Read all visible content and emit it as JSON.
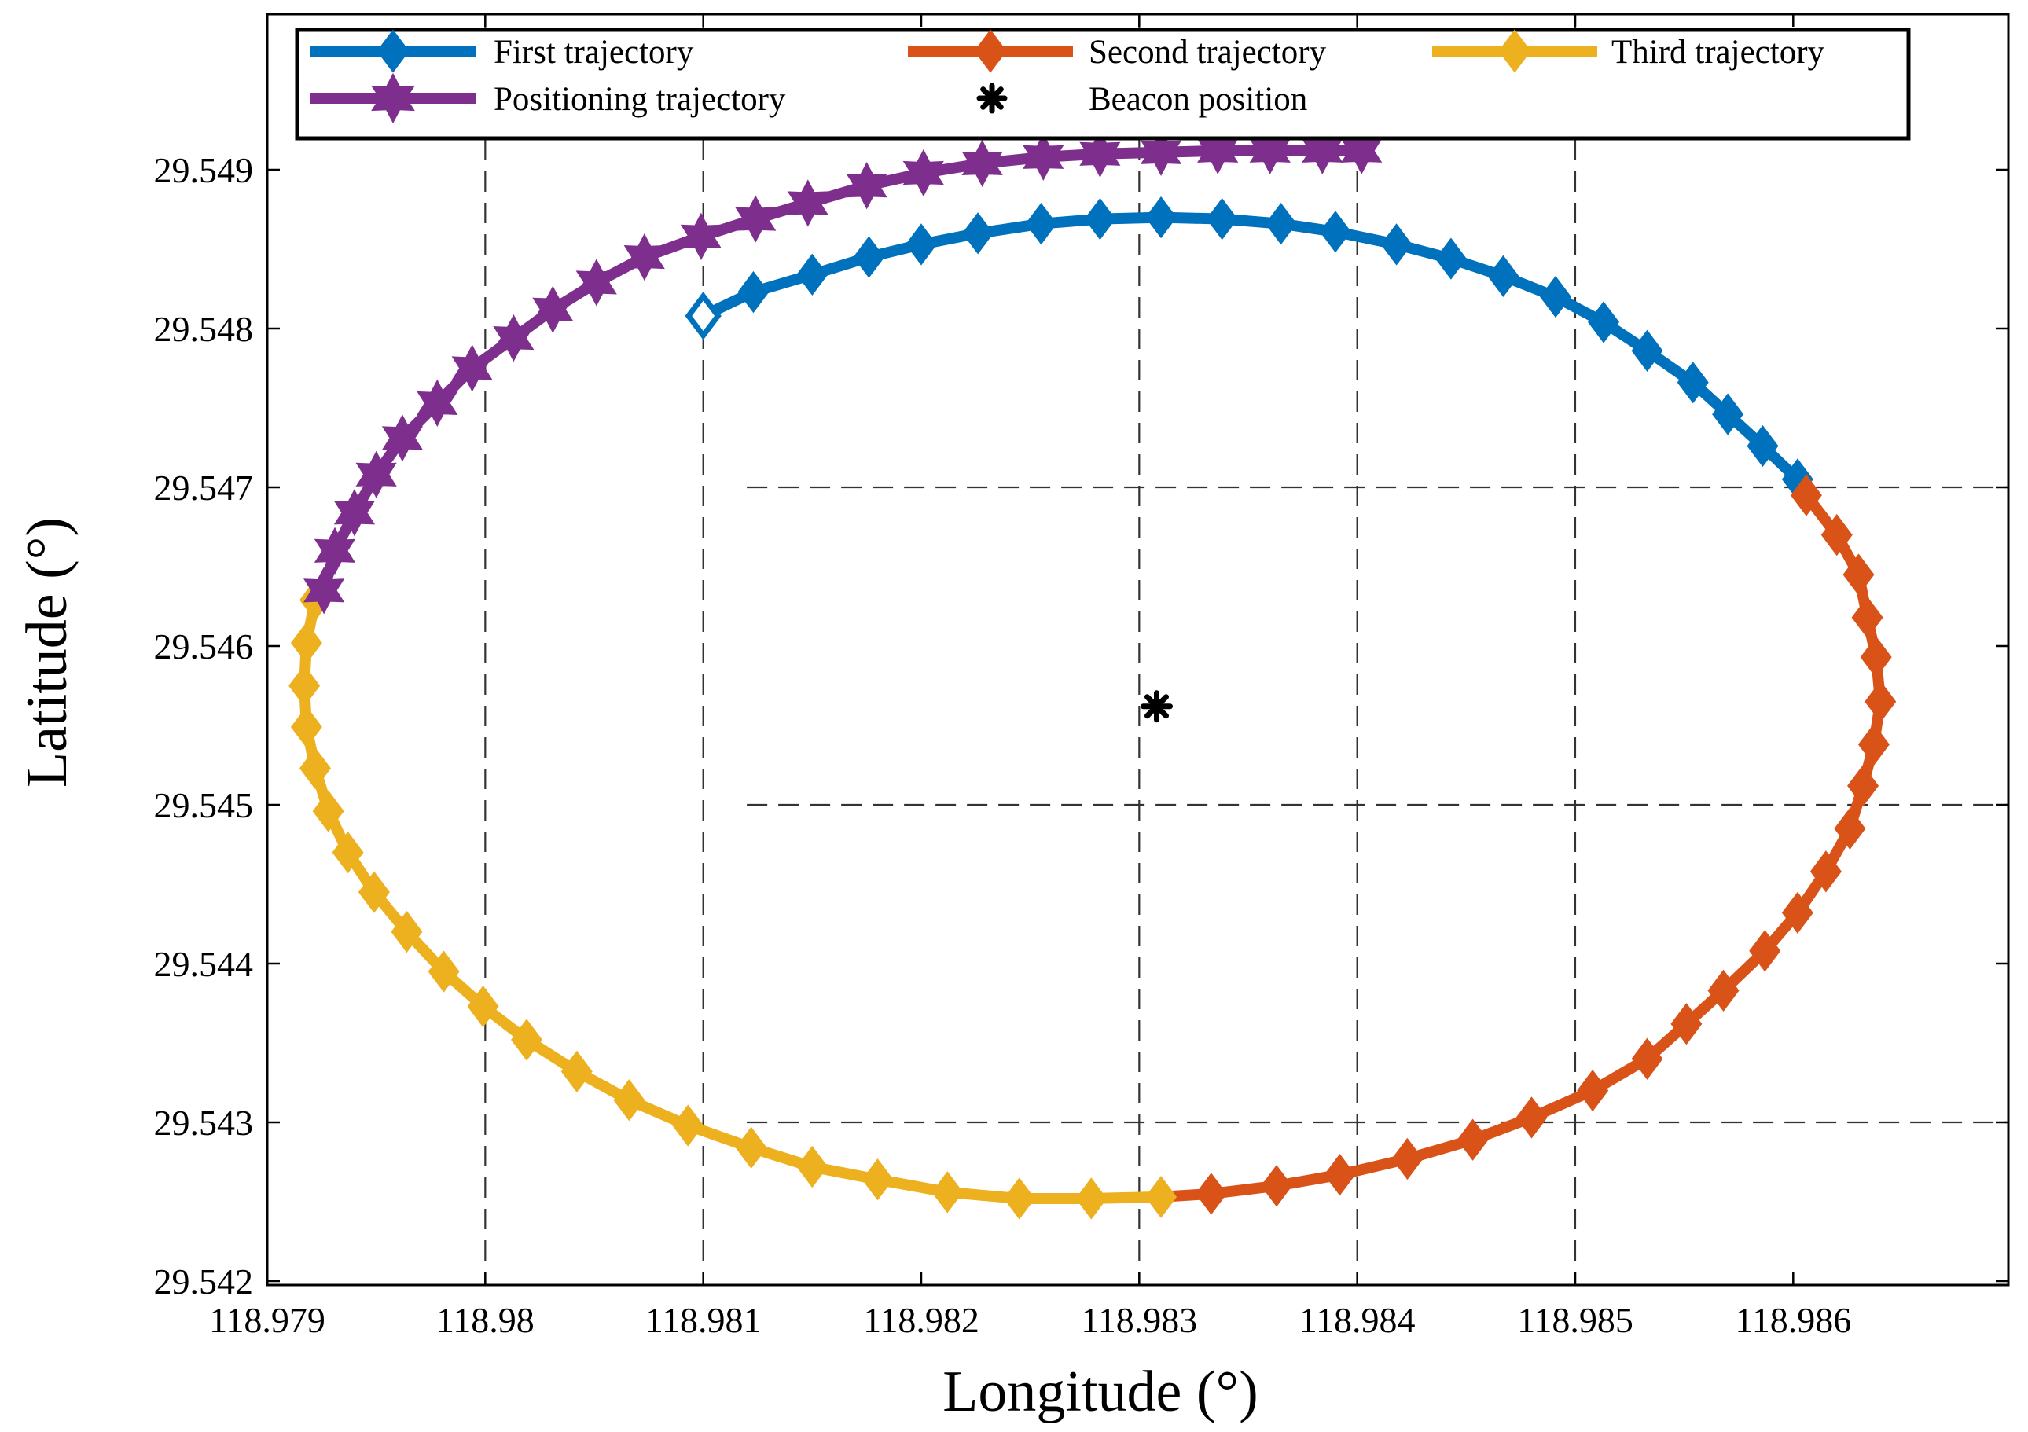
{
  "chart_data": {
    "type": "line",
    "xlabel": "Longitude (°)",
    "ylabel": "Latitude (°)",
    "xlim": [
      118.979,
      118.9869
    ],
    "ylim": [
      29.542,
      29.5499
    ],
    "x_ticks": [
      118.979,
      118.98,
      118.981,
      118.982,
      118.983,
      118.984,
      118.985,
      118.986
    ],
    "x_tick_labels": [
      "118.979",
      "118.98",
      "118.981",
      "118.982",
      "118.983",
      "118.984",
      "118.985",
      "118.986"
    ],
    "y_ticks": [
      29.542,
      29.543,
      29.544,
      29.545,
      29.546,
      29.547,
      29.548,
      29.549
    ],
    "y_tick_labels": [
      "29.542",
      "29.543",
      "29.544",
      "29.545",
      "29.546",
      "29.547",
      "29.548",
      "29.549"
    ],
    "grid": {
      "vertical": [
        118.98,
        118.981,
        118.983,
        118.984,
        118.985
      ],
      "horizontal": [
        29.543,
        29.545,
        29.547
      ],
      "horizontal_from_x": 118.9812
    },
    "legend": {
      "position": "top",
      "entries": [
        {
          "label": "First trajectory",
          "series": 0
        },
        {
          "label": "Second trajectory",
          "series": 1
        },
        {
          "label": "Third trajectory",
          "series": 2
        },
        {
          "label": "Positioning trajectory",
          "series": 3
        },
        {
          "label": "Beacon position",
          "series": 4
        }
      ]
    },
    "series": [
      {
        "name": "First trajectory",
        "color": "#0072BD",
        "marker": "diamond",
        "points": [
          [
            118.981,
            29.54808
          ],
          [
            118.98123,
            29.54823
          ],
          [
            118.9815,
            29.54834
          ],
          [
            118.98176,
            29.54845
          ],
          [
            118.982,
            29.54853
          ],
          [
            118.98226,
            29.5486
          ],
          [
            118.98255,
            29.54866
          ],
          [
            118.98282,
            29.54869
          ],
          [
            118.9831,
            29.5487
          ],
          [
            118.98338,
            29.54869
          ],
          [
            118.98365,
            29.54866
          ],
          [
            118.9839,
            29.54861
          ],
          [
            118.98418,
            29.54853
          ],
          [
            118.98443,
            29.54844
          ],
          [
            118.98467,
            29.54833
          ],
          [
            118.98491,
            29.5482
          ],
          [
            118.98513,
            29.54804
          ],
          [
            118.98533,
            29.54786
          ],
          [
            118.98554,
            29.54766
          ],
          [
            118.9857,
            29.54746
          ],
          [
            118.98586,
            29.54726
          ],
          [
            118.98602,
            29.54705
          ]
        ]
      },
      {
        "name": "Second trajectory",
        "color": "#D95319",
        "marker": "diamond",
        "points": [
          [
            118.98606,
            29.54695
          ],
          [
            118.9862,
            29.5467
          ],
          [
            118.9863,
            29.54645
          ],
          [
            118.98634,
            29.54618
          ],
          [
            118.98638,
            29.54593
          ],
          [
            118.9864,
            29.54565
          ],
          [
            118.98637,
            29.54538
          ],
          [
            118.98632,
            29.54512
          ],
          [
            118.98626,
            29.54485
          ],
          [
            118.98615,
            29.54458
          ],
          [
            118.98602,
            29.54432
          ],
          [
            118.98587,
            29.54408
          ],
          [
            118.98568,
            29.54383
          ],
          [
            118.98551,
            29.54362
          ],
          [
            118.98533,
            29.5434
          ],
          [
            118.98508,
            29.5432
          ],
          [
            118.9848,
            29.54303
          ],
          [
            118.98453,
            29.54289
          ],
          [
            118.98423,
            29.54277
          ],
          [
            118.98392,
            29.54267
          ],
          [
            118.98363,
            29.5426
          ],
          [
            118.98333,
            29.54255
          ],
          [
            118.9831,
            29.54253
          ]
        ]
      },
      {
        "name": "Third trajectory",
        "color": "#EDB120",
        "marker": "diamond",
        "points": [
          [
            118.9831,
            29.54253
          ],
          [
            118.98278,
            29.54252
          ],
          [
            118.98245,
            29.54252
          ],
          [
            118.98212,
            29.54256
          ],
          [
            118.9818,
            29.54264
          ],
          [
            118.9815,
            29.54272
          ],
          [
            118.98122,
            29.54284
          ],
          [
            118.98093,
            29.54298
          ],
          [
            118.98066,
            29.54314
          ],
          [
            118.98042,
            29.54332
          ],
          [
            118.98019,
            29.54352
          ],
          [
            118.97999,
            29.54373
          ],
          [
            118.97981,
            29.54395
          ],
          [
            118.97964,
            29.5442
          ],
          [
            118.97949,
            29.54445
          ],
          [
            118.97937,
            29.5447
          ],
          [
            118.97928,
            29.54496
          ],
          [
            118.97922,
            29.54523
          ],
          [
            118.97918,
            29.54549
          ],
          [
            118.97917,
            29.54575
          ],
          [
            118.97918,
            29.54602
          ],
          [
            118.97922,
            29.54629
          ]
        ]
      },
      {
        "name": "Positioning trajectory",
        "color": "#7E2F8E",
        "marker": "hexagram",
        "points": [
          [
            118.97926,
            29.54635
          ],
          [
            118.97931,
            29.5466
          ],
          [
            118.9794,
            29.54684
          ],
          [
            118.9795,
            29.54708
          ],
          [
            118.97962,
            29.54731
          ],
          [
            118.97978,
            29.54753
          ],
          [
            118.97994,
            29.54775
          ],
          [
            118.98013,
            29.54794
          ],
          [
            118.98031,
            29.54812
          ],
          [
            118.98051,
            29.54829
          ],
          [
            118.98073,
            29.54845
          ],
          [
            118.98099,
            29.54858
          ],
          [
            118.98124,
            29.54869
          ],
          [
            118.98148,
            29.54879
          ],
          [
            118.98175,
            29.5489
          ],
          [
            118.98201,
            29.54898
          ],
          [
            118.98228,
            29.54904
          ],
          [
            118.98256,
            29.54908
          ],
          [
            118.98282,
            29.5491
          ],
          [
            118.9831,
            29.54911
          ],
          [
            118.98336,
            29.54912
          ],
          [
            118.9836,
            29.54912
          ],
          [
            118.98384,
            29.54912
          ],
          [
            118.98402,
            29.54912
          ]
        ]
      },
      {
        "name": "Beacon position",
        "color": "#000000",
        "marker": "asterisk",
        "points": [
          [
            118.98308,
            29.54562
          ]
        ]
      }
    ]
  }
}
